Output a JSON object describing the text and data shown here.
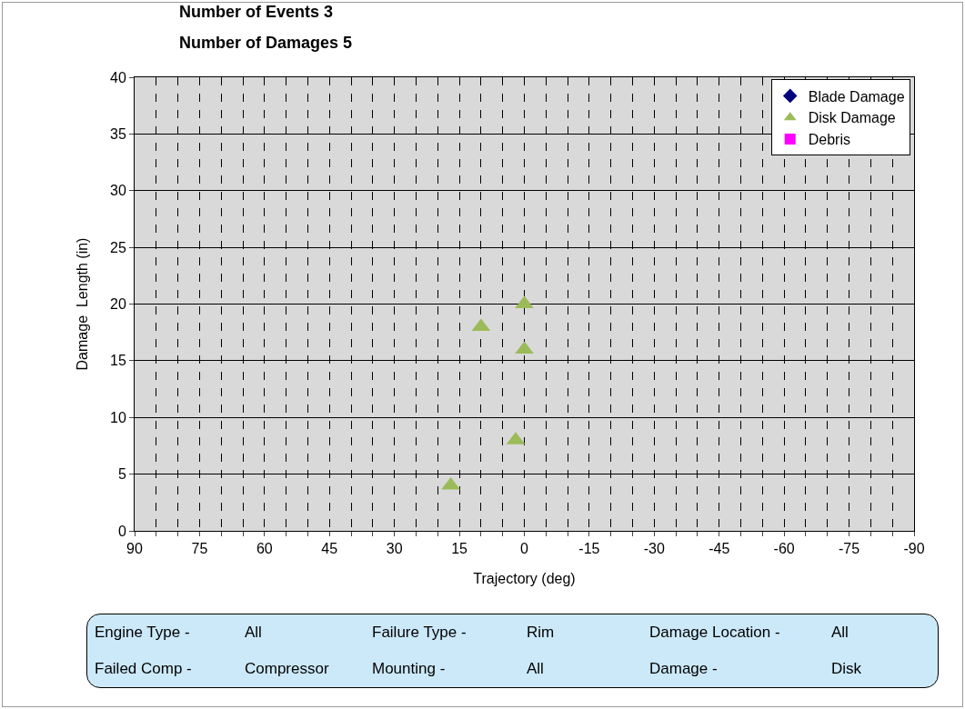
{
  "chart_data": {
    "type": "scatter",
    "title": "Number of Events 3",
    "subtitle": "Number of Damages 5",
    "xlabel": "Trajectory (deg)",
    "ylabel": "Damage  Length (in)",
    "xlim": [
      90,
      -90
    ],
    "xticks": [
      90,
      {
        "value": 85,
        "label": null
      },
      {
        "value": 80,
        "label": null
      },
      75,
      {
        "value": 70,
        "label": null
      },
      {
        "value": 65,
        "label": null
      },
      60,
      {
        "value": 55,
        "label": null
      },
      {
        "value": 50,
        "label": null
      },
      45,
      {
        "value": 40,
        "label": null
      },
      {
        "value": 35,
        "label": null
      },
      30,
      {
        "value": 25,
        "label": null
      },
      {
        "value": 20,
        "label": null
      },
      15,
      {
        "value": 10,
        "label": null
      },
      {
        "value": 5,
        "label": null
      },
      0,
      {
        "value": -5,
        "label": null
      },
      {
        "value": -10,
        "label": null
      },
      -15,
      {
        "value": -20,
        "label": null
      },
      {
        "value": -25,
        "label": null
      },
      -30,
      {
        "value": -35,
        "label": null
      },
      {
        "value": -40,
        "label": null
      },
      -45,
      {
        "value": -50,
        "label": null
      },
      {
        "value": -55,
        "label": null
      },
      -60,
      {
        "value": -65,
        "label": null
      },
      {
        "value": -70,
        "label": null
      },
      -75,
      {
        "value": -80,
        "label": null
      },
      {
        "value": -85,
        "label": null
      },
      -90
    ],
    "ylim": [
      0,
      40
    ],
    "yticks": [
      0,
      5,
      10,
      15,
      20,
      25,
      30,
      35,
      40
    ],
    "grid": true,
    "legend": "top right",
    "series": [
      {
        "name": "Blade Damage",
        "color": "#000080",
        "marker": "diamond"
      },
      {
        "name": "Disk Damage",
        "color": "#9bbb59",
        "marker": "triangle",
        "x": [
          17,
          10,
          0,
          0,
          2
        ],
        "values": [
          4,
          18,
          20,
          16,
          8
        ]
      },
      {
        "name": "Debris",
        "color": "#ff00ff",
        "marker": "square"
      }
    ],
    "annotations": [
      "Engine Type -",
      "All",
      "Failure Type -",
      "Rim",
      "Damage Location -",
      "All",
      "Failed Comp -",
      "Compressor",
      "Mounting -",
      "All",
      "Damage -",
      "Disk"
    ]
  }
}
